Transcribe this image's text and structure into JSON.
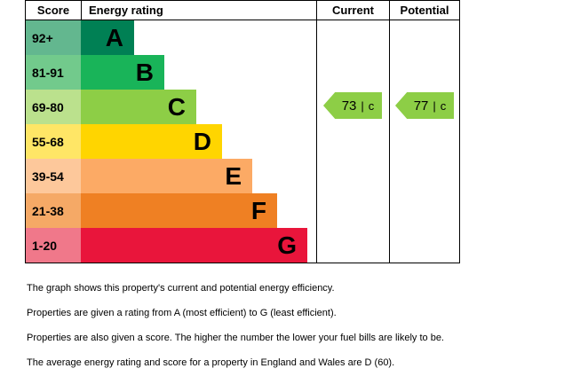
{
  "header": {
    "score": "Score",
    "energy_rating": "Energy rating",
    "current": "Current",
    "potential": "Potential"
  },
  "bands": [
    {
      "score": "92+",
      "letter": "A",
      "color": "#008054",
      "tint": "#63b78f"
    },
    {
      "score": "81-91",
      "letter": "B",
      "color": "#19b459",
      "tint": "#72ca8c"
    },
    {
      "score": "69-80",
      "letter": "C",
      "color": "#8dce46",
      "tint": "#bbe18d"
    },
    {
      "score": "55-68",
      "letter": "D",
      "color": "#ffd500",
      "tint": "#ffe666"
    },
    {
      "score": "39-54",
      "letter": "E",
      "color": "#fcaa65",
      "tint": "#fdc89b"
    },
    {
      "score": "21-38",
      "letter": "F",
      "color": "#ef8023",
      "tint": "#f5a966"
    },
    {
      "score": "1-20",
      "letter": "G",
      "color": "#e9153b",
      "tint": "#f0788a"
    }
  ],
  "current": {
    "value": "73",
    "sep": "|",
    "letter": "c",
    "color": "#8dce46"
  },
  "potential": {
    "value": "77",
    "sep": "|",
    "letter": "c",
    "color": "#8dce46"
  },
  "footnotes": [
    "The graph shows this property's current and potential energy efficiency.",
    "Properties are given a rating from A (most efficient) to G (least efficient).",
    "Properties are also given a score. The higher the number the lower your fuel bills are likely to be.",
    "The average energy rating and score for a property in England and Wales are D (60)."
  ],
  "chart_data": {
    "type": "bar",
    "title": "Energy rating",
    "categories": [
      "A",
      "B",
      "C",
      "D",
      "E",
      "F",
      "G"
    ],
    "score_ranges": [
      "92+",
      "81-91",
      "69-80",
      "55-68",
      "39-54",
      "21-38",
      "1-20"
    ],
    "band_colors": [
      "#008054",
      "#19b459",
      "#8dce46",
      "#ffd500",
      "#fcaa65",
      "#ef8023",
      "#e9153b"
    ],
    "bar_relative_widths": [
      60,
      94,
      130,
      159,
      193,
      221,
      255
    ],
    "current": {
      "score": 73,
      "rating": "c"
    },
    "potential": {
      "score": 77,
      "rating": "c"
    },
    "legend_position": "none",
    "grid": false
  }
}
